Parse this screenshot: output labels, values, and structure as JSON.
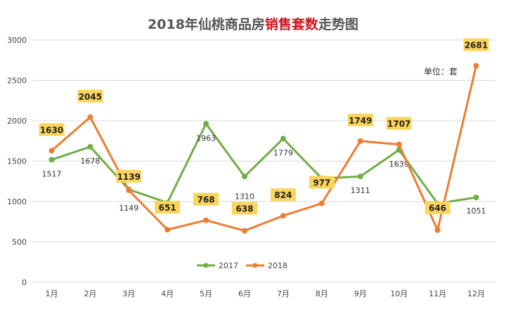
{
  "chart_data": {
    "type": "line",
    "title": {
      "prefix": "2018年仙桃商品房",
      "highlight": "销售套数",
      "suffix": "走势图"
    },
    "unit_label": "单位：套",
    "categories": [
      "1月",
      "2月",
      "3月",
      "4月",
      "5月",
      "6月",
      "7月",
      "8月",
      "9月",
      "10月",
      "11月",
      "12月"
    ],
    "ylim": [
      0,
      3000
    ],
    "yticks": [
      0,
      500,
      1000,
      1500,
      2000,
      2500,
      3000
    ],
    "grid": true,
    "legend": "bottom-center",
    "series": [
      {
        "name": "2017",
        "color": "#70ad47",
        "values": [
          1517,
          1678,
          1149,
          985,
          1963,
          1310,
          1779,
          1285,
          1311,
          1639,
          975,
          1051
        ],
        "labels": [
          "1517",
          "1678",
          "1149",
          null,
          "1963",
          "1310",
          "1779",
          null,
          "1311",
          "1639",
          null,
          "1051"
        ]
      },
      {
        "name": "2018",
        "color": "#ed7d31",
        "values": [
          1630,
          2045,
          1139,
          651,
          768,
          638,
          824,
          977,
          1749,
          1707,
          646,
          2681
        ],
        "labels": [
          "1630",
          "2045",
          "1139",
          "651",
          "768",
          "638",
          "824",
          "977",
          "1749",
          "1707",
          "646",
          "2681"
        ]
      }
    ]
  }
}
